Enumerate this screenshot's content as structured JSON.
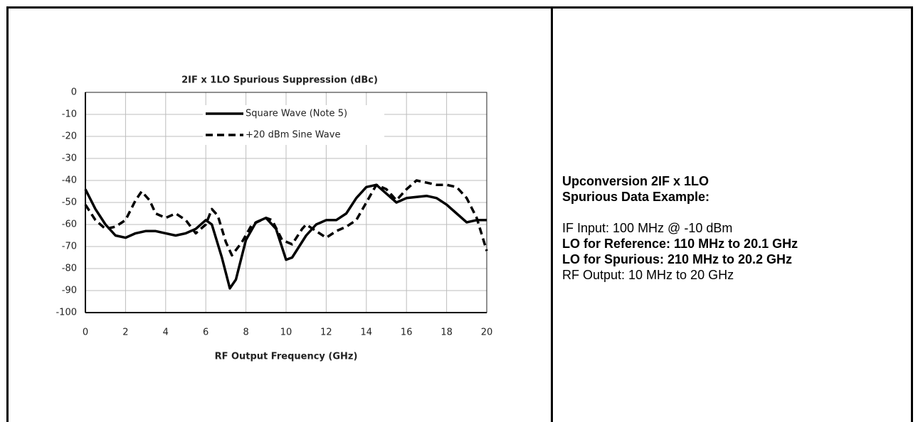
{
  "chart_data": {
    "type": "line",
    "title": "2IF x 1LO Spurious Suppression (dBc)",
    "x_label": "RF Output Frequency (GHz)",
    "xlim": [
      0,
      20
    ],
    "xticks": [
      0,
      2,
      4,
      6,
      8,
      10,
      12,
      14,
      16,
      18,
      20
    ],
    "ylim": [
      -100,
      0
    ],
    "yticks": [
      0,
      -10,
      -20,
      -30,
      -40,
      -50,
      -60,
      -70,
      -80,
      -90,
      -100
    ],
    "grid": true,
    "legend": "top",
    "series": [
      {
        "name": "Square Wave (Note 5)",
        "color": "#000000",
        "dash": false,
        "x": [
          0,
          0.5,
          1,
          1.5,
          2,
          2.5,
          3,
          3.5,
          4,
          4.5,
          5,
          5.5,
          6,
          6.3,
          6.8,
          7.2,
          7.5,
          8,
          8.5,
          9,
          9.5,
          10,
          10.3,
          11,
          11.5,
          12,
          12.5,
          13,
          13.5,
          14,
          14.5,
          15,
          15.5,
          16,
          17,
          17.5,
          18,
          18.5,
          19,
          19.5,
          20
        ],
        "values": [
          -44,
          -53,
          -60,
          -65,
          -66,
          -64,
          -63,
          -63,
          -64,
          -65,
          -64,
          -62,
          -58,
          -60,
          -75,
          -89,
          -85,
          -67,
          -59,
          -57,
          -62,
          -76,
          -75,
          -65,
          -60,
          -58,
          -58,
          -55,
          -48,
          -43,
          -42,
          -46,
          -50,
          -48,
          -47,
          -48,
          -51,
          -55,
          -59,
          -58,
          -58
        ]
      },
      {
        "name": "+20 dBm Sine Wave",
        "color": "#000000",
        "dash": true,
        "x": [
          0,
          0.5,
          1,
          1.5,
          2,
          2.5,
          2.8,
          3.2,
          3.5,
          4,
          4.5,
          5,
          5.5,
          6,
          6.3,
          6.6,
          7,
          7.3,
          7.8,
          8.3,
          9,
          9.3,
          9.8,
          10.3,
          10.8,
          11,
          11.5,
          12,
          12.5,
          13,
          13.5,
          14,
          14.5,
          15,
          15.5,
          16,
          16.5,
          17,
          17.5,
          18,
          18.5,
          19,
          19.5,
          20
        ],
        "values": [
          -51,
          -58,
          -62,
          -61,
          -58,
          -49,
          -45,
          -49,
          -55,
          -57,
          -55,
          -58,
          -64,
          -60,
          -53,
          -56,
          -68,
          -74,
          -68,
          -60,
          -57,
          -58,
          -67,
          -69,
          -62,
          -60,
          -63,
          -66,
          -63,
          -61,
          -58,
          -50,
          -42,
          -44,
          -49,
          -44,
          -40,
          -41,
          -42,
          -42,
          -43,
          -48,
          -57,
          -72
        ]
      }
    ]
  },
  "notes": {
    "heading": [
      "Upconversion 2IF x 1LO",
      "Spurious Data Example:"
    ],
    "lines": [
      "IF Input: 100 MHz @ -10 dBm",
      "LO for Reference: 110 MHz to 20.1 GHz",
      "LO for Spurious: 210 MHz to 20.2 GHz",
      "RF Output: 10 MHz to 20 GHz"
    ]
  }
}
